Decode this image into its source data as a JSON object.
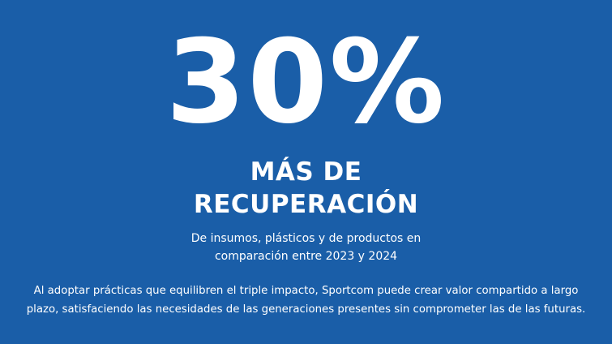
{
  "stat": {
    "value": "30%"
  },
  "headline": {
    "line1": "MÁS DE",
    "line2": "RECUPERACIÓN"
  },
  "subtitle": {
    "line1": "De insumos, plásticos y de productos en",
    "line2": "comparación entre 2023 y 2024"
  },
  "description": {
    "line1": "Al adoptar prácticas que equilibren el triple impacto, Sportcom puede crear valor compartido a largo",
    "line2": "plazo, satisfaciendo las necesidades de las generaciones presentes sin comprometer las de las futuras."
  },
  "colors": {
    "background": "#1a5ea8",
    "text": "#ffffff"
  }
}
